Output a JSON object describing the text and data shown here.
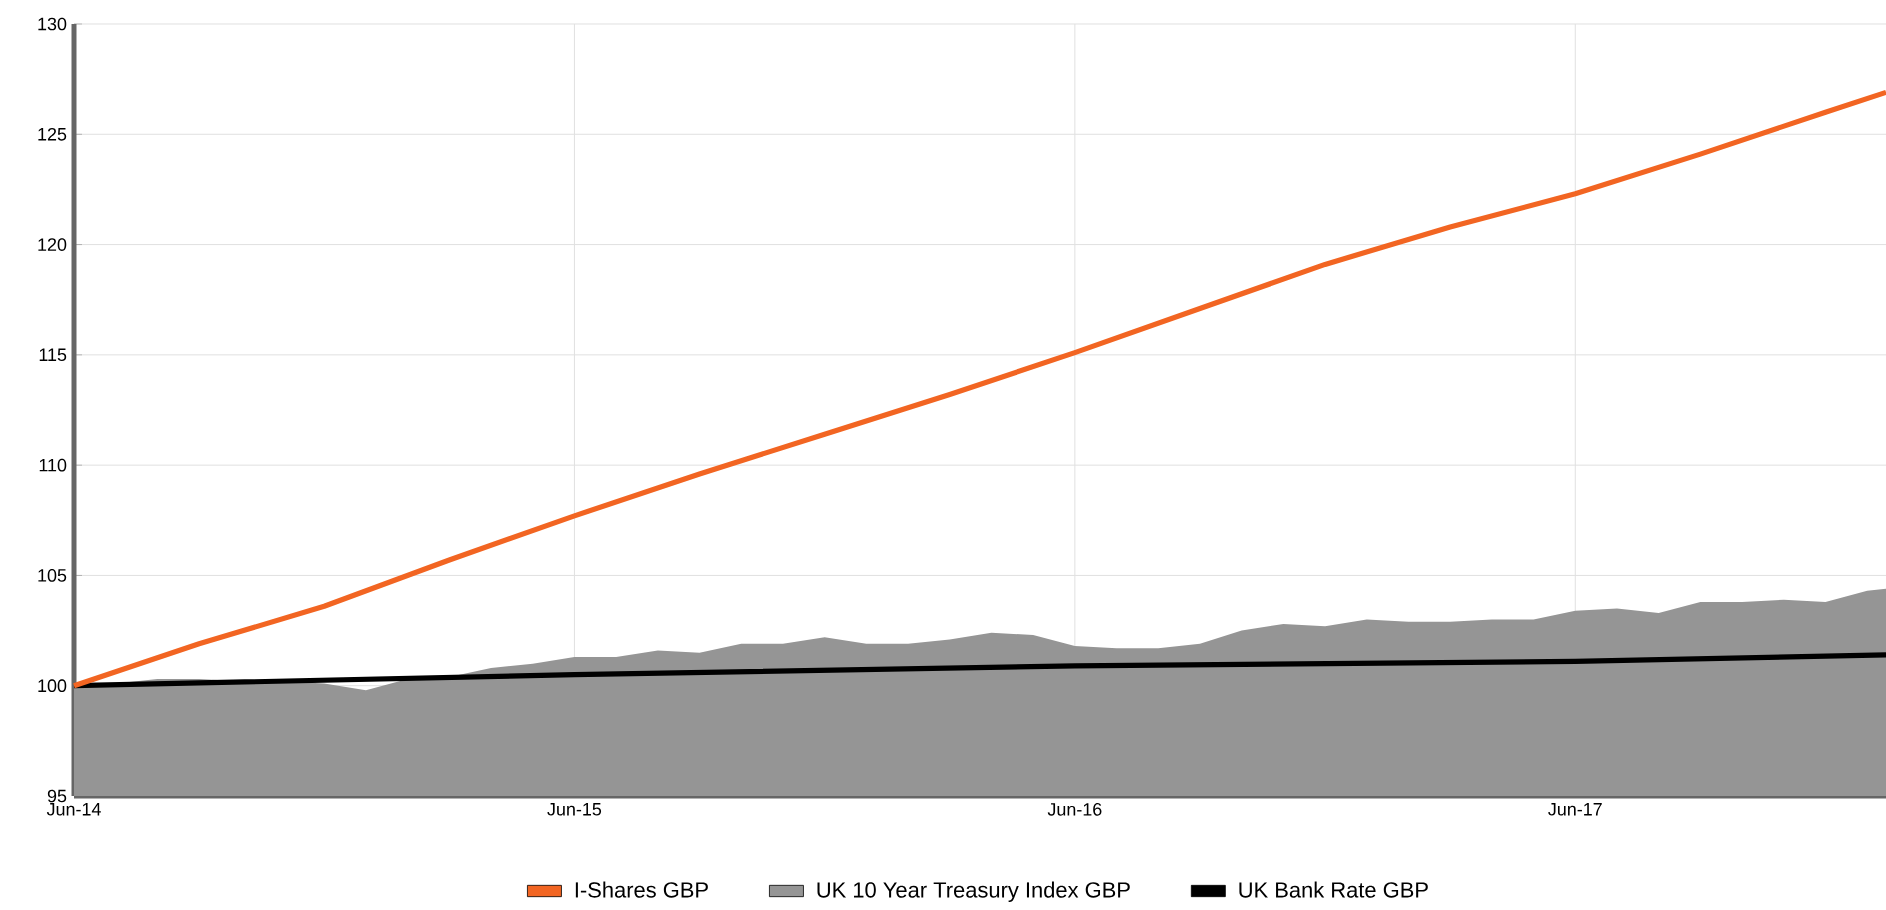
{
  "chart_data": {
    "type": "line",
    "xlim": [
      "2014-06",
      "2018-01-15"
    ],
    "ylim": [
      95,
      130
    ],
    "xticks": [
      {
        "value": "2014-06",
        "label": "Jun-14"
      },
      {
        "value": "2015-06",
        "label": "Jun-15"
      },
      {
        "value": "2016-06",
        "label": "Jun-16"
      },
      {
        "value": "2017-06",
        "label": "Jun-17"
      }
    ],
    "yticks": [
      95,
      100,
      105,
      110,
      115,
      120,
      125,
      130
    ],
    "grid": true,
    "legend": "bottom",
    "series": [
      {
        "name": "I-Shares GBP",
        "color": "#f26522",
        "x": [
          "2014-06",
          "2014-09",
          "2014-12",
          "2015-03",
          "2015-06",
          "2015-09",
          "2015-12",
          "2016-03",
          "2016-06",
          "2016-09",
          "2016-12",
          "2017-03",
          "2017-06",
          "2017-09",
          "2017-12",
          "2018-01-15"
        ],
        "values": [
          100,
          101.9,
          103.6,
          105.7,
          107.7,
          109.6,
          111.4,
          113.2,
          115.1,
          117.1,
          119.1,
          120.8,
          122.3,
          124.1,
          126.0,
          126.9
        ]
      },
      {
        "name": "UK 10 Year Treasury Index GBP",
        "type": "area",
        "color": "#959595",
        "x": [
          "2014-06",
          "2014-07",
          "2014-08",
          "2014-09",
          "2014-10",
          "2014-11",
          "2014-12",
          "2015-01",
          "2015-02",
          "2015-03",
          "2015-04",
          "2015-05",
          "2015-06",
          "2015-07",
          "2015-08",
          "2015-09",
          "2015-10",
          "2015-11",
          "2015-12",
          "2016-01",
          "2016-02",
          "2016-03",
          "2016-04",
          "2016-05",
          "2016-06",
          "2016-07",
          "2016-08",
          "2016-09",
          "2016-10",
          "2016-11",
          "2016-12",
          "2017-01",
          "2017-02",
          "2017-03",
          "2017-04",
          "2017-05",
          "2017-06",
          "2017-07",
          "2017-08",
          "2017-09",
          "2017-10",
          "2017-11",
          "2017-12",
          "2018-01",
          "2018-01-15"
        ],
        "values": [
          100.0,
          100.1,
          100.3,
          100.3,
          100.2,
          100.2,
          100.1,
          99.8,
          100.3,
          100.4,
          100.8,
          101.0,
          101.3,
          101.3,
          101.6,
          101.5,
          101.9,
          101.9,
          102.2,
          101.9,
          101.9,
          102.1,
          102.4,
          102.3,
          101.8,
          101.7,
          101.7,
          101.9,
          102.5,
          102.8,
          102.7,
          103.0,
          102.9,
          102.9,
          103.0,
          103.0,
          103.4,
          103.5,
          103.3,
          103.8,
          103.8,
          103.9,
          103.8,
          104.3,
          104.4
        ]
      },
      {
        "name": "UK Bank Rate GBP",
        "color": "#000000",
        "x": [
          "2014-06",
          "2015-06",
          "2016-06",
          "2017-06",
          "2018-01-15"
        ],
        "values": [
          100,
          100.5,
          100.9,
          101.1,
          101.4
        ]
      }
    ]
  }
}
